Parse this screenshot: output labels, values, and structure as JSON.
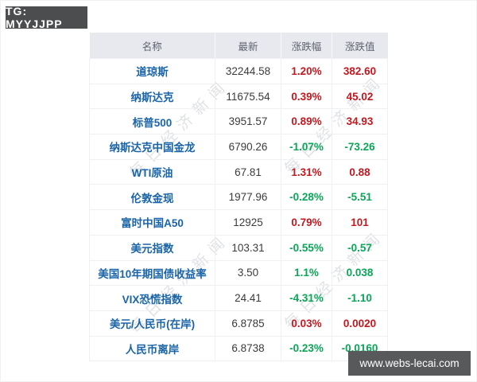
{
  "tg_badge": {
    "label": "TG: MYYJJPP"
  },
  "site_badge": {
    "label": "www.webs-lecai.com"
  },
  "watermark": {
    "text": "每日经济新闻"
  },
  "colors": {
    "up_red": "#c01920",
    "down_green": "#0ba558",
    "header_bg": "#e8e9ee",
    "name_blue": "#1a64a8",
    "badge_gray": "#4c4d4f"
  },
  "table": {
    "headers": [
      "名称",
      "最新",
      "涨跌幅",
      "涨跌值"
    ],
    "rows": [
      {
        "name": "道琼斯",
        "latest": "32244.58",
        "change_pct": "1.20%",
        "change_val": "382.60",
        "change_color": "up"
      },
      {
        "name": "纳斯达克",
        "latest": "11675.54",
        "change_pct": "0.39%",
        "change_val": "45.02",
        "change_color": "up"
      },
      {
        "name": "标普500",
        "latest": "3951.57",
        "change_pct": "0.89%",
        "change_val": "34.93",
        "change_color": "up"
      },
      {
        "name": "纳斯达克中国金龙",
        "latest": "6790.26",
        "change_pct": "-1.07%",
        "change_val": "-73.26",
        "change_color": "down"
      },
      {
        "name": "WTI原油",
        "latest": "67.81",
        "change_pct": "1.31%",
        "change_val": "0.88",
        "change_color": "up"
      },
      {
        "name": "伦敦金现",
        "latest": "1977.96",
        "change_pct": "-0.28%",
        "change_val": "-5.51",
        "change_color": "down"
      },
      {
        "name": "富时中国A50",
        "latest": "12925",
        "change_pct": "0.79%",
        "change_val": "101",
        "change_color": "up"
      },
      {
        "name": "美元指数",
        "latest": "103.31",
        "change_pct": "-0.55%",
        "change_val": "-0.57",
        "change_color": "down"
      },
      {
        "name": "美国10年期国债收益率",
        "latest": "3.50",
        "change_pct": "1.1%",
        "change_val": "0.038",
        "change_color": "down"
      },
      {
        "name": "VIX恐慌指数",
        "latest": "24.41",
        "change_pct": "-4.31%",
        "change_val": "-1.10",
        "change_color": "down"
      },
      {
        "name": "美元/人民币(在岸)",
        "latest": "6.8785",
        "change_pct": "0.03%",
        "change_val": "0.0020",
        "change_color": "up"
      },
      {
        "name": "人民币离岸",
        "latest": "6.8738",
        "change_pct": "-0.23%",
        "change_val": "-0.0160",
        "change_color": "down"
      }
    ]
  }
}
